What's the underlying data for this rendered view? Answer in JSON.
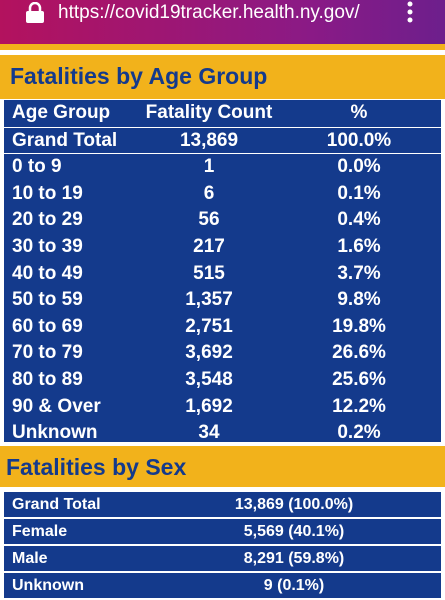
{
  "browser": {
    "url": "https://covid19tracker.health.ny.gov/"
  },
  "age_section": {
    "title": "Fatalities by Age Group",
    "table": {
      "header": [
        "Age Group",
        "Fatality Count",
        "%"
      ],
      "rows": [
        [
          "Grand Total",
          "13,869",
          "100.0%"
        ],
        [
          "0 to 9",
          "1",
          "0.0%"
        ],
        [
          "10 to 19",
          "6",
          "0.1%"
        ],
        [
          "20 to 29",
          "56",
          "0.4%"
        ],
        [
          "30 to 39",
          "217",
          "1.6%"
        ],
        [
          "40 to 49",
          "515",
          "3.7%"
        ],
        [
          "50 to 59",
          "1,357",
          "9.8%"
        ],
        [
          "60 to 69",
          "2,751",
          "19.8%"
        ],
        [
          "70 to 79",
          "3,692",
          "26.6%"
        ],
        [
          "80 to 89",
          "3,548",
          "25.6%"
        ],
        [
          "90 & Over",
          "1,692",
          "12.2%"
        ],
        [
          "Unknown",
          "34",
          "0.2%"
        ]
      ]
    }
  },
  "sex_section": {
    "title": "Fatalities by Sex",
    "table": {
      "rows": [
        [
          "Grand Total",
          "13,869 (100.0%)"
        ],
        [
          "Female",
          "5,569 (40.1%)"
        ],
        [
          "Male",
          "8,291 (59.8%)"
        ],
        [
          "Unknown",
          "9 (0.1%)"
        ]
      ]
    }
  }
}
